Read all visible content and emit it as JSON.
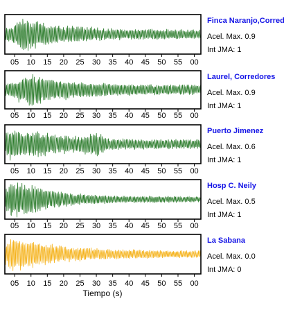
{
  "chart_data": {
    "type": "line",
    "xlabel": "Tiempo (s)",
    "xlim": [
      2,
      62
    ],
    "tick_labels": [
      "05",
      "10",
      "15",
      "20",
      "25",
      "30",
      "35",
      "40",
      "45",
      "50",
      "55",
      "00"
    ],
    "panels": [
      {
        "name": "Finca Naranjo,Corredores",
        "accel_label": "Acel. Max. 0.9",
        "int_label": "Int JMA: 1",
        "accel_max": 0.9,
        "int_jma": 1,
        "color": "#2e7d2e",
        "name_color": "#1414e6",
        "envelope": [
          [
            2,
            0.35
          ],
          [
            5,
            0.55
          ],
          [
            7,
            0.9
          ],
          [
            9,
            0.95
          ],
          [
            12,
            0.7
          ],
          [
            15,
            0.6
          ],
          [
            20,
            0.45
          ],
          [
            25,
            0.45
          ],
          [
            30,
            0.35
          ],
          [
            40,
            0.3
          ],
          [
            50,
            0.28
          ],
          [
            62,
            0.25
          ]
        ]
      },
      {
        "name": "Laurel, Corredores",
        "accel_label": "Acel. Max. 0.9",
        "int_label": "Int JMA: 1",
        "accel_max": 0.9,
        "int_jma": 1,
        "color": "#2e7d2e",
        "name_color": "#1414e6",
        "envelope": [
          [
            2,
            0.35
          ],
          [
            5,
            0.55
          ],
          [
            8,
            0.8
          ],
          [
            10,
            0.95
          ],
          [
            13,
            0.75
          ],
          [
            16,
            0.65
          ],
          [
            20,
            0.55
          ],
          [
            25,
            0.45
          ],
          [
            30,
            0.4
          ],
          [
            40,
            0.33
          ],
          [
            50,
            0.3
          ],
          [
            62,
            0.28
          ]
        ]
      },
      {
        "name": "Puerto Jimenez",
        "accel_label": "Acel. Max. 0.6",
        "int_label": "Int JMA: 1",
        "accel_max": 0.6,
        "int_jma": 1,
        "color": "#2e7d2e",
        "name_color": "#1414e6",
        "envelope": [
          [
            2,
            0.55
          ],
          [
            4,
            0.9
          ],
          [
            8,
            0.75
          ],
          [
            12,
            0.7
          ],
          [
            16,
            0.6
          ],
          [
            20,
            0.5
          ],
          [
            25,
            0.45
          ],
          [
            28,
            0.6
          ],
          [
            30,
            0.75
          ],
          [
            33,
            0.35
          ],
          [
            40,
            0.3
          ],
          [
            50,
            0.28
          ],
          [
            62,
            0.25
          ]
        ]
      },
      {
        "name": "Hosp C. Neily",
        "accel_label": "Acel. Max. 0.5",
        "int_label": "Int JMA: 1",
        "accel_max": 0.5,
        "int_jma": 1,
        "color": "#2e7d2e",
        "name_color": "#1414e6",
        "envelope": [
          [
            2,
            0.6
          ],
          [
            4,
            0.95
          ],
          [
            7,
            0.9
          ],
          [
            10,
            0.8
          ],
          [
            14,
            0.65
          ],
          [
            18,
            0.5
          ],
          [
            22,
            0.35
          ],
          [
            30,
            0.25
          ],
          [
            40,
            0.2
          ],
          [
            50,
            0.18
          ],
          [
            62,
            0.15
          ]
        ]
      },
      {
        "name": "La Sabana",
        "accel_label": "Acel. Max. 0.0",
        "int_label": "Int JMA: 0",
        "accel_max": 0.0,
        "int_jma": 0,
        "color": "#f5b21a",
        "name_color": "#1414e6",
        "envelope": [
          [
            2,
            0.5
          ],
          [
            4,
            0.95
          ],
          [
            7,
            0.85
          ],
          [
            10,
            0.75
          ],
          [
            14,
            0.65
          ],
          [
            18,
            0.5
          ],
          [
            22,
            0.4
          ],
          [
            30,
            0.3
          ],
          [
            40,
            0.25
          ],
          [
            50,
            0.22
          ],
          [
            62,
            0.2
          ]
        ]
      }
    ]
  }
}
